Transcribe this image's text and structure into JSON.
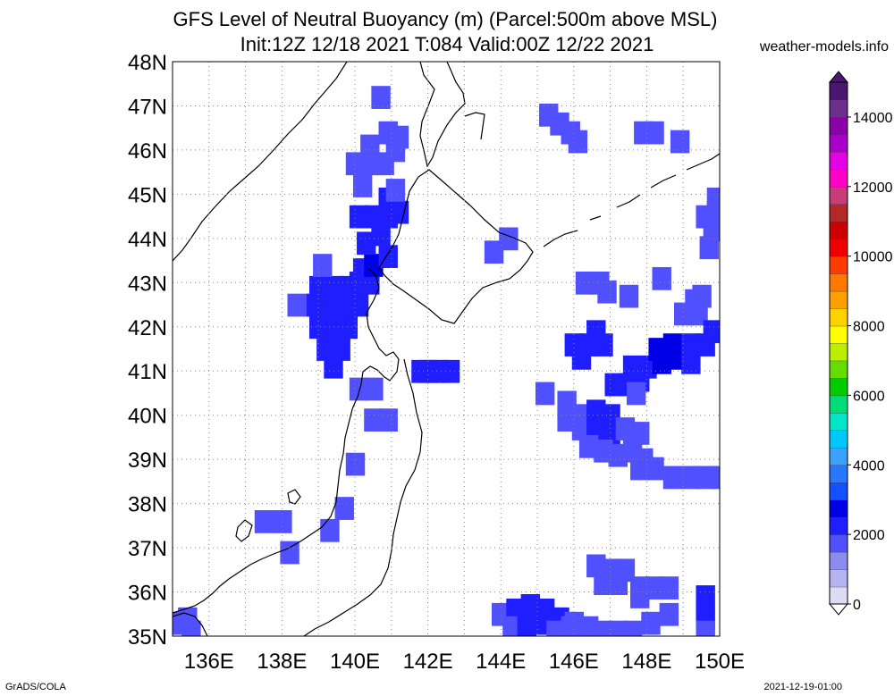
{
  "title_line1": "GFS Level of Neutral Buoyancy (m) (Parcel:500m above MSL)",
  "title_line2": "Init:12Z 12/18 2021 T:084 Valid:00Z 12/22 2021",
  "credit": "weather-models.info",
  "footer_left": "GrADS/COLA",
  "footer_right": "2021-12-19-01:00",
  "map": {
    "lon_range": [
      135,
      150
    ],
    "lat_range": [
      35,
      48
    ],
    "lat_labels": [
      "35N",
      "36N",
      "37N",
      "38N",
      "39N",
      "40N",
      "41N",
      "42N",
      "43N",
      "44N",
      "45N",
      "46N",
      "47N",
      "48N"
    ],
    "lon_labels": [
      {
        "lon": 136,
        "text": "136E"
      },
      {
        "lon": 138,
        "text": "138E"
      },
      {
        "lon": 140,
        "text": "140E"
      },
      {
        "lon": 142,
        "text": "142E"
      },
      {
        "lon": 144,
        "text": "144E"
      },
      {
        "lon": 146,
        "text": "146E"
      },
      {
        "lon": 148,
        "text": "148E"
      },
      {
        "lon": 150,
        "text": "150E"
      }
    ],
    "grid": "dotted",
    "colorbar": {
      "min": 0,
      "max": 15000,
      "labels": [
        "0",
        "2000",
        "4000",
        "6000",
        "8000",
        "10000",
        "12000",
        "14000"
      ],
      "label_values": [
        0,
        2000,
        4000,
        6000,
        8000,
        10000,
        12000,
        14000
      ],
      "colors": [
        "#dcdcf5",
        "#b4b4f0",
        "#8c8cf0",
        "#5050ff",
        "#1e1eff",
        "#0000e6",
        "#1450ff",
        "#2878ff",
        "#3ca0ff",
        "#00c8ff",
        "#00e6c8",
        "#00dc78",
        "#00cc00",
        "#66dd00",
        "#bbee00",
        "#ffff00",
        "#ffd200",
        "#ffa000",
        "#ff7800",
        "#ff3c00",
        "#ee0000",
        "#cc0000",
        "#b42828",
        "#c83c78",
        "#ff00c8",
        "#e600e6",
        "#aa00cc",
        "#8c00aa",
        "#6e2e8e",
        "#4b1670"
      ]
    },
    "cells_note_units": "lon lat degrees",
    "cells": [
      [
        137.5,
        37.6,
        1800
      ],
      [
        138.0,
        37.6,
        1800
      ],
      [
        138.2,
        36.9,
        1700
      ],
      [
        139.3,
        37.4,
        1700
      ],
      [
        139.7,
        37.9,
        1700
      ],
      [
        140.0,
        38.9,
        1700
      ],
      [
        140.5,
        39.9,
        1800
      ],
      [
        140.9,
        39.9,
        1800
      ],
      [
        140.1,
        40.6,
        1800
      ],
      [
        140.5,
        40.6,
        1900
      ],
      [
        142.0,
        41.0,
        2100
      ],
      [
        142.3,
        41.0,
        2100
      ],
      [
        142.6,
        41.0,
        2100
      ],
      [
        141.8,
        41.0,
        2100
      ],
      [
        138.9,
        42.5,
        2300
      ],
      [
        139.3,
        42.5,
        2400
      ],
      [
        139.7,
        42.5,
        2300
      ],
      [
        140.1,
        42.5,
        2200
      ],
      [
        139.0,
        42.0,
        2300
      ],
      [
        139.4,
        42.0,
        2400
      ],
      [
        139.8,
        42.0,
        2300
      ],
      [
        139.2,
        41.5,
        2200
      ],
      [
        139.6,
        41.5,
        2300
      ],
      [
        139.4,
        41.1,
        2100
      ],
      [
        139.0,
        42.9,
        2200
      ],
      [
        139.4,
        42.9,
        2300
      ],
      [
        139.8,
        42.9,
        2200
      ],
      [
        140.1,
        43.0,
        2300
      ],
      [
        140.4,
        43.0,
        2400
      ],
      [
        140.2,
        43.3,
        2200
      ],
      [
        140.5,
        43.4,
        2500
      ],
      [
        140.9,
        43.6,
        2400
      ],
      [
        140.3,
        43.9,
        2200
      ],
      [
        140.7,
        44.1,
        2300
      ],
      [
        140.1,
        44.5,
        2200
      ],
      [
        140.5,
        44.5,
        2300
      ],
      [
        140.9,
        44.5,
        2200
      ],
      [
        141.2,
        44.6,
        2300
      ],
      [
        140.9,
        44.9,
        2000
      ],
      [
        141.1,
        45.1,
        1900
      ],
      [
        138.4,
        42.5,
        1900
      ],
      [
        139.1,
        43.4,
        1900
      ],
      [
        140.0,
        45.7,
        1800
      ],
      [
        140.4,
        45.7,
        1800
      ],
      [
        140.8,
        45.7,
        1800
      ],
      [
        140.2,
        45.2,
        1900
      ],
      [
        140.4,
        46.1,
        1700
      ],
      [
        140.9,
        46.4,
        1700
      ],
      [
        141.1,
        46.0,
        1700
      ],
      [
        141.2,
        46.3,
        1700
      ],
      [
        140.7,
        47.2,
        1700
      ],
      [
        143.8,
        43.7,
        1700
      ],
      [
        144.2,
        44.0,
        1700
      ],
      [
        145.3,
        46.8,
        1700
      ],
      [
        145.6,
        46.6,
        1700
      ],
      [
        145.9,
        46.4,
        1700
      ],
      [
        146.1,
        46.2,
        1700
      ],
      [
        147.9,
        46.4,
        1700
      ],
      [
        148.2,
        46.4,
        1700
      ],
      [
        148.9,
        46.2,
        1700
      ],
      [
        148.4,
        43.1,
        1700
      ],
      [
        146.3,
        43.0,
        1800
      ],
      [
        146.7,
        43.0,
        1900
      ],
      [
        146.9,
        42.8,
        1800
      ],
      [
        147.5,
        42.7,
        1700
      ],
      [
        149.3,
        42.6,
        1900
      ],
      [
        149.5,
        42.7,
        1900
      ],
      [
        149.0,
        42.3,
        1800
      ],
      [
        149.4,
        42.3,
        1900
      ],
      [
        146.0,
        41.6,
        2300
      ],
      [
        146.4,
        41.6,
        2400
      ],
      [
        146.8,
        41.6,
        2300
      ],
      [
        146.6,
        41.9,
        2300
      ],
      [
        146.2,
        41.3,
        2200
      ],
      [
        147.6,
        41.1,
        2200
      ],
      [
        148.0,
        41.1,
        2300
      ],
      [
        148.4,
        41.2,
        2500
      ],
      [
        148.8,
        41.3,
        2600
      ],
      [
        149.2,
        41.2,
        2400
      ],
      [
        148.3,
        41.5,
        2600
      ],
      [
        148.7,
        41.6,
        2500
      ],
      [
        149.2,
        41.6,
        2300
      ],
      [
        149.6,
        41.6,
        2300
      ],
      [
        149.8,
        41.9,
        2200
      ],
      [
        147.1,
        40.7,
        2000
      ],
      [
        147.5,
        40.7,
        2100
      ],
      [
        147.8,
        40.8,
        2000
      ],
      [
        147.7,
        40.5,
        1800
      ],
      [
        145.2,
        40.5,
        1800
      ],
      [
        145.8,
        40.3,
        1800
      ],
      [
        146.2,
        40.0,
        1900
      ],
      [
        146.6,
        40.1,
        2000
      ],
      [
        147.0,
        40.0,
        2100
      ],
      [
        145.8,
        39.9,
        1800
      ],
      [
        146.2,
        39.7,
        1900
      ],
      [
        146.6,
        39.7,
        2100
      ],
      [
        147.0,
        39.6,
        2000
      ],
      [
        147.4,
        39.7,
        1900
      ],
      [
        147.8,
        39.6,
        1900
      ],
      [
        146.4,
        39.3,
        1800
      ],
      [
        146.8,
        39.2,
        1800
      ],
      [
        147.2,
        39.1,
        1800
      ],
      [
        147.6,
        39.2,
        1800
      ],
      [
        147.9,
        39.0,
        1800
      ],
      [
        148.2,
        38.8,
        1800
      ],
      [
        147.8,
        38.8,
        1800
      ],
      [
        148.7,
        38.6,
        1800
      ],
      [
        149.2,
        38.6,
        1800
      ],
      [
        149.6,
        38.6,
        1800
      ],
      [
        150.0,
        38.6,
        1800
      ],
      [
        146.6,
        36.6,
        1900
      ],
      [
        147.0,
        36.5,
        1900
      ],
      [
        147.4,
        36.5,
        1900
      ],
      [
        146.8,
        36.2,
        1800
      ],
      [
        147.2,
        36.2,
        1900
      ],
      [
        147.8,
        36.1,
        1800
      ],
      [
        148.2,
        36.1,
        1900
      ],
      [
        148.6,
        36.1,
        1900
      ],
      [
        147.8,
        35.9,
        1800
      ],
      [
        144.0,
        35.5,
        1900
      ],
      [
        144.4,
        35.6,
        2000
      ],
      [
        144.8,
        35.7,
        2000
      ],
      [
        145.2,
        35.6,
        2000
      ],
      [
        145.6,
        35.4,
        2100
      ],
      [
        146.0,
        35.3,
        1900
      ],
      [
        144.3,
        35.2,
        1900
      ],
      [
        144.7,
        35.2,
        2000
      ],
      [
        145.1,
        35.3,
        2000
      ],
      [
        145.5,
        35.1,
        1900
      ],
      [
        145.9,
        35.2,
        1900
      ],
      [
        146.4,
        35.2,
        1800
      ],
      [
        146.8,
        35.1,
        1800
      ],
      [
        147.2,
        35.1,
        1800
      ],
      [
        147.6,
        35.1,
        1800
      ],
      [
        148.1,
        35.3,
        1800
      ],
      [
        148.6,
        35.5,
        1900
      ],
      [
        149.6,
        35.9,
        2000
      ],
      [
        149.6,
        35.4,
        2000
      ],
      [
        149.6,
        35.1,
        1900
      ],
      [
        149.7,
        43.8,
        1800
      ],
      [
        149.8,
        44.2,
        1700
      ],
      [
        149.9,
        44.6,
        1800
      ],
      [
        149.9,
        44.9,
        1800
      ],
      [
        149.6,
        44.5,
        1800
      ],
      [
        135.1,
        35.3,
        1900
      ],
      [
        135.5,
        35.1,
        1900
      ],
      [
        135.4,
        35.4,
        1800
      ]
    ]
  }
}
